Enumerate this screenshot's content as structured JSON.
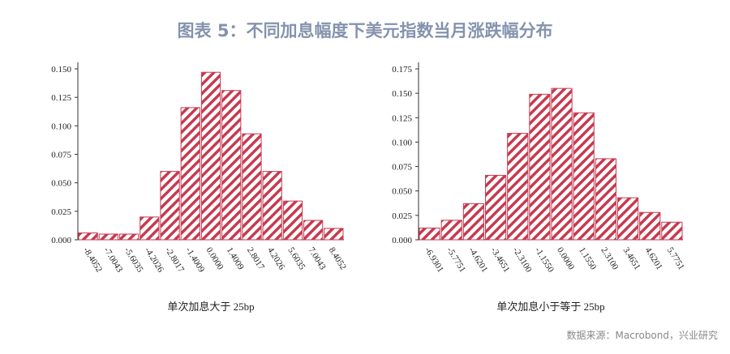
{
  "title": "图表 5：不同加息幅度下美元指数当月涨跌幅分布",
  "source": "数据来源：Macrobond，兴业研究",
  "chart_data": [
    {
      "type": "bar",
      "x_label": "单次加息大于 25bp",
      "color": "#c73a4f",
      "categories": [
        "-8.4052",
        "-7.0043",
        "-5.6035",
        "-4.2026",
        "-2.8017",
        "-1.4009",
        "0.0000",
        "1.4009",
        "2.8017",
        "4.2026",
        "5.6035",
        "7.0043",
        "8.4052"
      ],
      "values": [
        0.006,
        0.005,
        0.005,
        0.02,
        0.06,
        0.116,
        0.147,
        0.131,
        0.093,
        0.06,
        0.034,
        0.017,
        0.01
      ],
      "ylim": [
        0,
        0.15
      ],
      "yticks": [
        {
          "value": 0,
          "label": "0.000"
        },
        {
          "value": 0.025,
          "label": "0.025"
        },
        {
          "value": 0.05,
          "label": "0.050"
        },
        {
          "value": 0.075,
          "label": "0.075"
        },
        {
          "value": 0.1,
          "label": "0.100"
        },
        {
          "value": 0.125,
          "label": "0.125"
        },
        {
          "value": 0.15,
          "label": "0.150"
        }
      ]
    },
    {
      "type": "bar",
      "x_label": "单次加息小于等于 25bp",
      "color": "#c73a4f",
      "categories": [
        "-6.9301",
        "-5.7751",
        "-4.6201",
        "-3.4651",
        "-2.3100",
        "-1.1550",
        "0.0000",
        "1.1550",
        "2.3100",
        "3.4651",
        "4.6201",
        "5.7751"
      ],
      "values": [
        0.012,
        0.02,
        0.037,
        0.066,
        0.109,
        0.149,
        0.155,
        0.13,
        0.083,
        0.043,
        0.028,
        0.018
      ],
      "ylim": [
        0,
        0.175
      ],
      "yticks": [
        {
          "value": 0,
          "label": "0.000"
        },
        {
          "value": 0.025,
          "label": "0.025"
        },
        {
          "value": 0.05,
          "label": "0.050"
        },
        {
          "value": 0.075,
          "label": "0.075"
        },
        {
          "value": 0.1,
          "label": "0.100"
        },
        {
          "value": 0.125,
          "label": "0.125"
        },
        {
          "value": 0.15,
          "label": "0.150"
        },
        {
          "value": 0.175,
          "label": "0.175"
        }
      ]
    }
  ]
}
